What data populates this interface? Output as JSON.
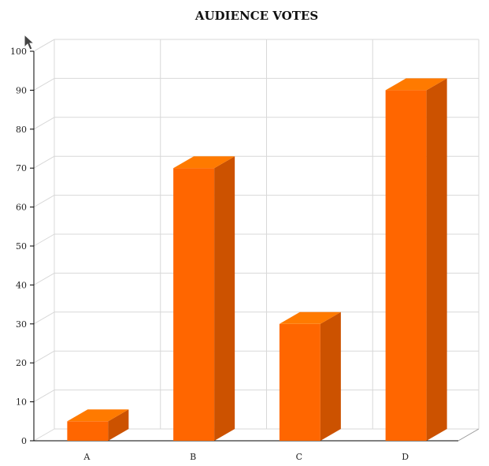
{
  "chart_data": {
    "type": "bar",
    "title": "AUDIENCE VOTES",
    "xlabel": "",
    "ylabel": "",
    "categories": [
      "A",
      "B",
      "C",
      "D"
    ],
    "values": [
      5,
      70,
      30,
      90
    ],
    "ylim": [
      0,
      100
    ],
    "yticks": [
      "0",
      "10",
      "20",
      "30",
      "40",
      "50",
      "60",
      "70",
      "80",
      "90",
      "100"
    ],
    "grid": true,
    "legend": "none",
    "style": "3d",
    "colors": {
      "bar_front": "#ff6600",
      "bar_side": "#cc5200",
      "bar_top": "#ff7a00",
      "grid": "#d8d8d8",
      "axis": "#000000"
    }
  },
  "ui": {
    "cursor": "pointer-cursor-icon"
  }
}
